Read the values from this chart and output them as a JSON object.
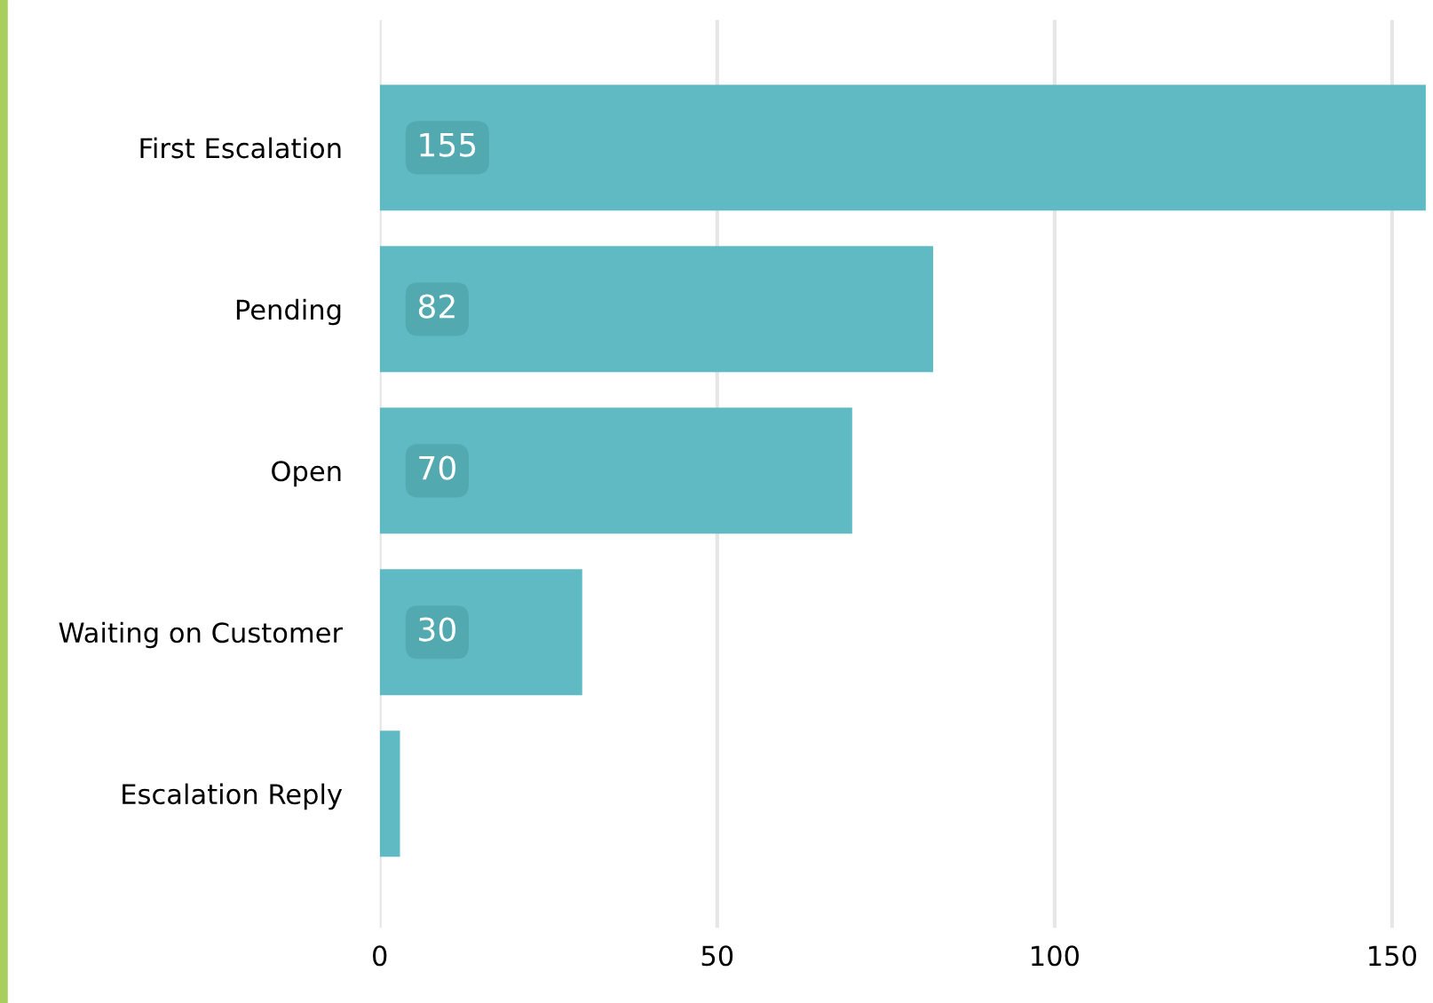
{
  "chart_data": {
    "type": "bar",
    "orientation": "horizontal",
    "categories": [
      "First Escalation",
      "Pending",
      "Open",
      "Waiting on Customer",
      "Escalation Reply"
    ],
    "values": [
      155,
      82,
      70,
      30,
      3
    ],
    "value_labels": [
      "155",
      "82",
      "70",
      "30",
      null
    ],
    "color": "#5fbac4",
    "xlim": [
      0,
      155
    ],
    "xticks": [
      0,
      50,
      100,
      150
    ],
    "grid": "x",
    "legend": false
  }
}
